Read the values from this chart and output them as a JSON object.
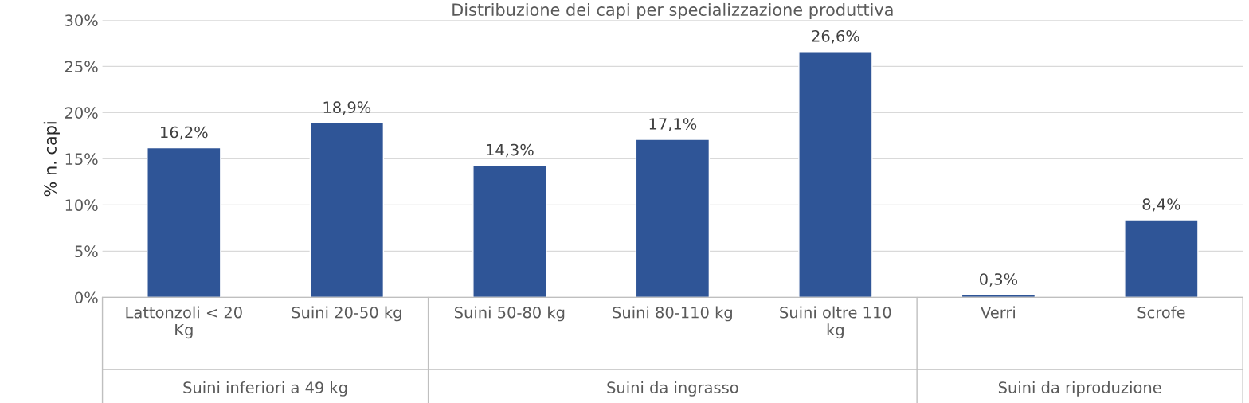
{
  "chart_data": {
    "type": "bar",
    "title": "Distribuzione dei capi per specializzazione produttiva",
    "ylabel": "% n. capi",
    "categories": [
      "Lattonzoli < 20 Kg",
      "Suini 20-50 kg",
      "Suini 50-80 kg",
      "Suini 80-110 kg",
      "Suini oltre 110 kg",
      "Verri",
      "Scrofe"
    ],
    "values": [
      16.2,
      18.9,
      14.3,
      17.1,
      26.6,
      0.3,
      8.4
    ],
    "value_labels": [
      "16,2%",
      "18,9%",
      "14,3%",
      "17,1%",
      "26,6%",
      "0,3%",
      "8,4%"
    ],
    "color": "#2f5597",
    "ylim": [
      0,
      30
    ],
    "yticks": [
      {
        "value": 0,
        "label": "0%"
      },
      {
        "value": 5,
        "label": "5%"
      },
      {
        "value": 10,
        "label": "10%"
      },
      {
        "value": 15,
        "label": "15%"
      },
      {
        "value": 20,
        "label": "20%"
      },
      {
        "value": 25,
        "label": "25%"
      },
      {
        "value": 30,
        "label": "30%"
      }
    ],
    "grid": "y",
    "annotations": [
      "Suini inferiori a 49 kg",
      "Suini da ingrasso",
      "Suini da riproduzione"
    ]
  }
}
